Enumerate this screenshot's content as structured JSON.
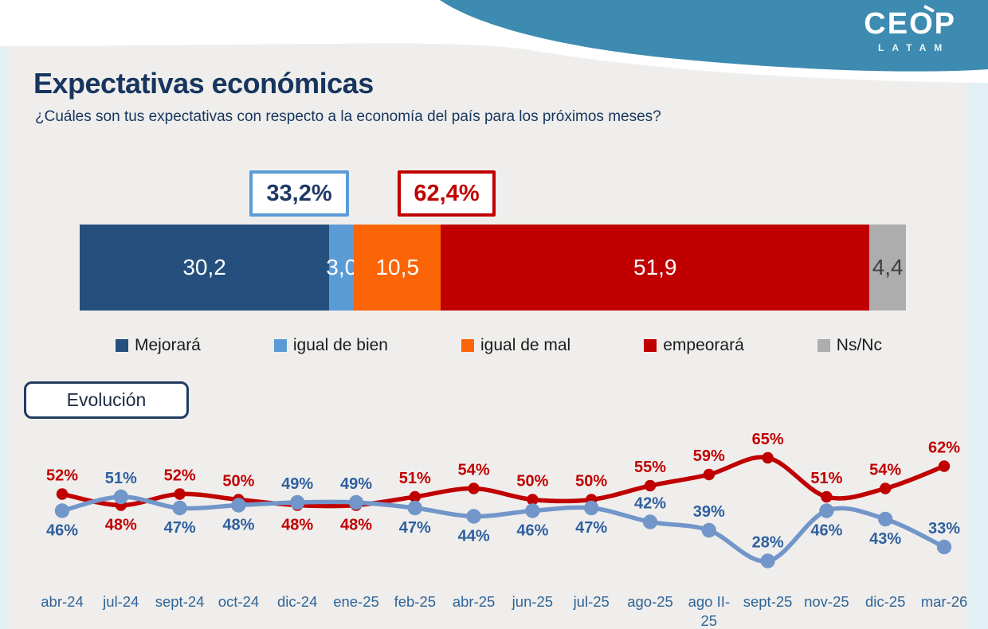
{
  "logo": {
    "brand": "CEOP",
    "sub": "LATAM"
  },
  "header": {
    "title": "Expectativas económicas",
    "subtitle": "¿Cuáles son tus expectativas con respecto a la economía del país para los próximos meses?"
  },
  "evolution_label": "Evolución",
  "theme": {
    "band": "#3D8BB0",
    "band_gap": "#FFFFFF",
    "card_bg": "#EFEEEC",
    "page_bg": "#E2F0F5",
    "title_color": "#17355E"
  },
  "chart_data": [
    {
      "type": "bar",
      "stacked": true,
      "orientation": "horizontal",
      "title": "",
      "total": 100,
      "segments": [
        {
          "label": "Mejorará",
          "value": 30.2,
          "display": "30,2",
          "color": "#254F7D",
          "text_color": "#FFFFFF"
        },
        {
          "label": "igual de bien",
          "value": 3.0,
          "display": "3,0",
          "color": "#5B9BD5",
          "text_color": "#FFFFFF"
        },
        {
          "label": "igual de mal",
          "value": 10.5,
          "display": "10,5",
          "color": "#FC6507",
          "text_color": "#FFFFFF"
        },
        {
          "label": "empeorará",
          "value": 51.9,
          "display": "51,9",
          "color": "#C00000",
          "text_color": "#FFFFFF"
        },
        {
          "label": "Ns/Nc",
          "value": 4.4,
          "display": "4,4",
          "color": "#ADADAD",
          "text_color": "#3F3F3F"
        }
      ],
      "annotations": [
        {
          "text": "33,2%",
          "text_color": "#1F3864",
          "border_color": "#5B9BD5"
        },
        {
          "text": "62,4%",
          "text_color": "#C00000",
          "border_color": "#C00000"
        }
      ],
      "legend_position": "bottom"
    },
    {
      "type": "line",
      "title": "Evolución",
      "categories": [
        "abr-24",
        "jul-24",
        "sept-24",
        "oct-24",
        "dic-24",
        "ene-25",
        "feb-25",
        "abr-25",
        "jun-25",
        "jul-25",
        "ago-25",
        "ago II-\n25",
        "sept-25",
        "nov-25",
        "dic-25",
        "mar-26"
      ],
      "value_suffix": "%",
      "ylim": [
        20,
        70
      ],
      "grid": false,
      "legend": "none",
      "axis_label_color": "#2F6496",
      "series": [
        {
          "name": "serie roja",
          "color": "#C00000",
          "label_color": "#C00000",
          "values": [
            52,
            48,
            52,
            50,
            48,
            48,
            51,
            54,
            50,
            50,
            55,
            59,
            65,
            51,
            54,
            62
          ],
          "labels": [
            "52%",
            "48%",
            "52%",
            "50%",
            "48%",
            "48%",
            "51%",
            "54%",
            "50%",
            "50%",
            "55%",
            "59%",
            "65%",
            "51%",
            "54%",
            "62%"
          ],
          "label_side": [
            "above",
            "below",
            "above",
            "above",
            "below",
            "below",
            "above",
            "above",
            "above",
            "above",
            "above",
            "above",
            "above",
            "above",
            "above",
            "above"
          ]
        },
        {
          "name": "serie azul",
          "color": "#7296C9",
          "label_color": "#2E5F9E",
          "values": [
            46,
            51,
            47,
            48,
            49,
            49,
            47,
            44,
            46,
            47,
            42,
            39,
            28,
            46,
            43,
            33
          ],
          "labels": [
            "46%",
            "51%",
            "47%",
            "48%",
            "49%",
            "49%",
            "47%",
            "44%",
            "46%",
            "47%",
            "42%",
            "39%",
            "28%",
            "46%",
            "43%",
            "33%"
          ],
          "label_side": [
            "below",
            "above",
            "below",
            "below",
            "above",
            "above",
            "below",
            "below",
            "below",
            "below",
            "above",
            "above",
            "above",
            "below",
            "below",
            "above"
          ]
        }
      ]
    }
  ]
}
